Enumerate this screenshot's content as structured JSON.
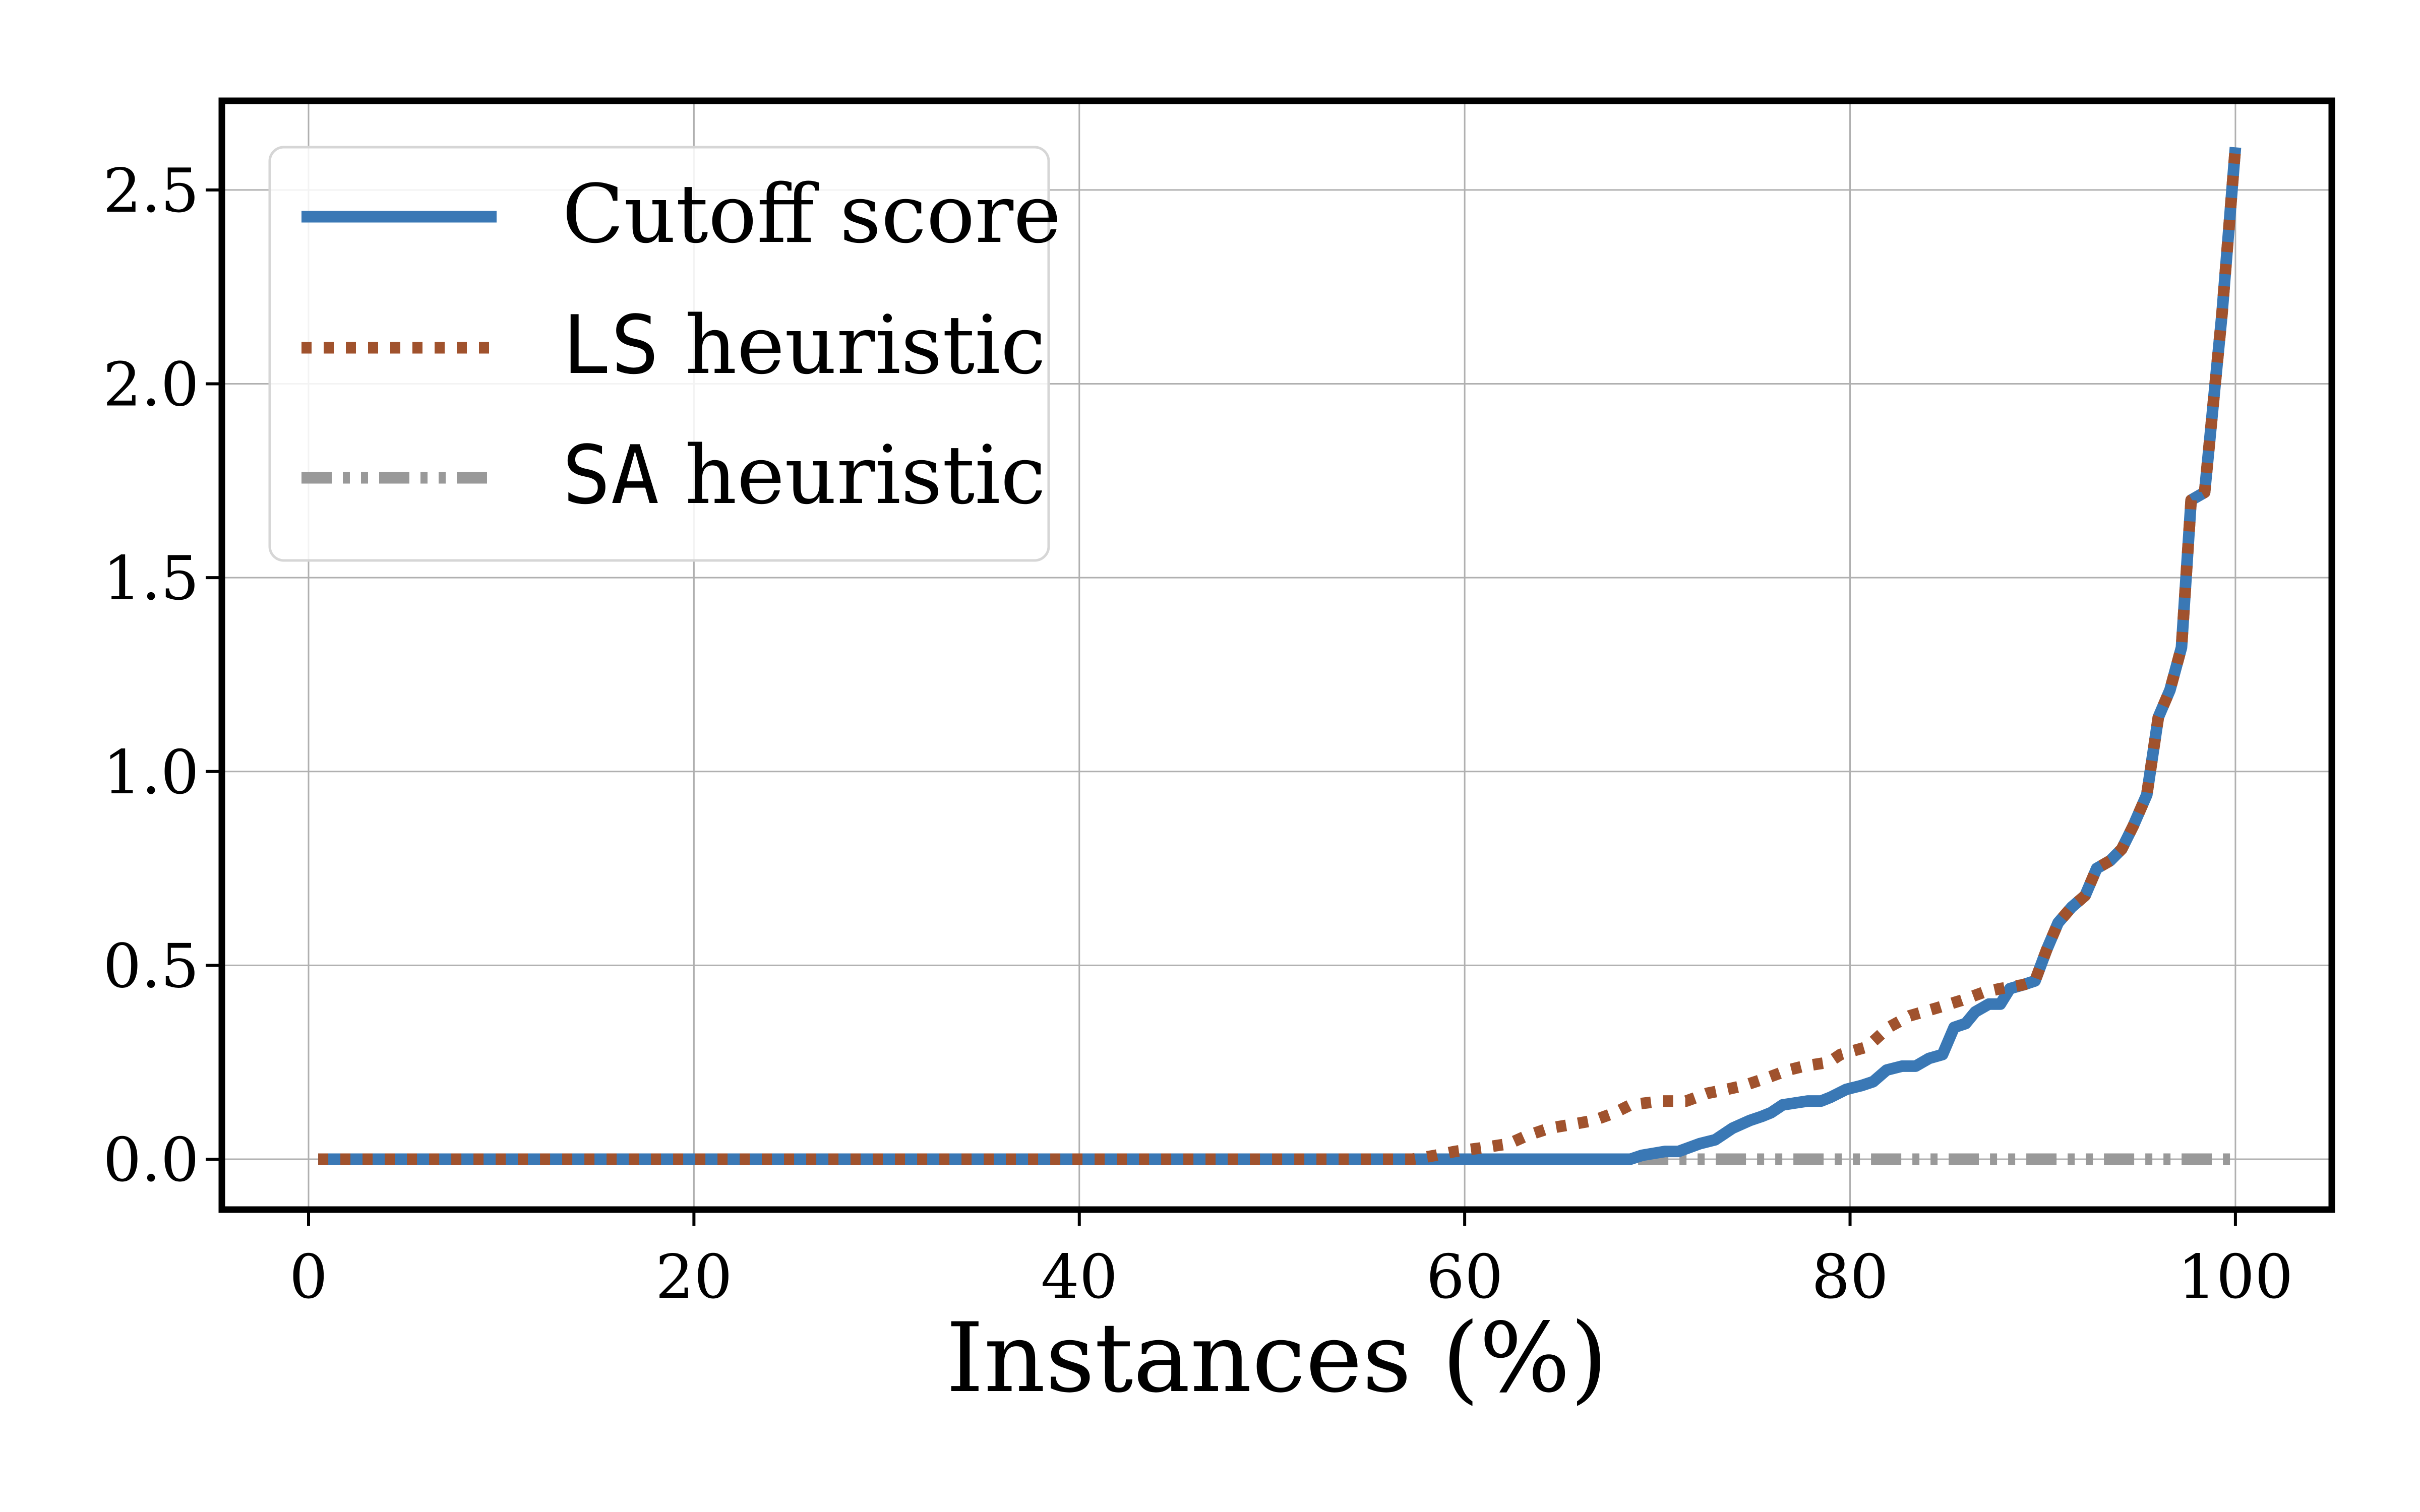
{
  "chart_data": {
    "type": "line",
    "xlabel": "Instances (%)",
    "ylabel": "",
    "xlim": [
      -4.5,
      105
    ],
    "ylim": [
      -0.13,
      2.73
    ],
    "xticks": [
      0,
      20,
      40,
      60,
      80,
      100
    ],
    "xtick_labels": [
      "0",
      "20",
      "40",
      "60",
      "80",
      "100"
    ],
    "yticks": [
      0.0,
      0.5,
      1.0,
      1.5,
      2.0,
      2.5
    ],
    "ytick_labels": [
      "0.0",
      "0.5",
      "1.0",
      "1.5",
      "2.0",
      "2.5"
    ],
    "grid": true,
    "legend_position": "top-left",
    "series": [
      {
        "name": "Cutoff score",
        "style": "solid",
        "color": "#3a78b5",
        "points": [
          [
            0.5,
            0
          ],
          [
            10,
            0
          ],
          [
            20,
            0
          ],
          [
            30,
            0
          ],
          [
            40,
            0
          ],
          [
            50,
            0
          ],
          [
            60,
            0
          ],
          [
            68.6,
            0
          ],
          [
            69.2,
            0.01
          ],
          [
            70.4,
            0.02
          ],
          [
            71.1,
            0.02
          ],
          [
            72.2,
            0.04
          ],
          [
            73.0,
            0.05
          ],
          [
            73.9,
            0.08
          ],
          [
            74.8,
            0.1
          ],
          [
            75.4,
            0.11
          ],
          [
            75.9,
            0.12
          ],
          [
            76.5,
            0.14
          ],
          [
            77.8,
            0.15
          ],
          [
            78.5,
            0.15
          ],
          [
            79.0,
            0.16
          ],
          [
            79.8,
            0.18
          ],
          [
            80.6,
            0.19
          ],
          [
            81.2,
            0.2
          ],
          [
            81.9,
            0.23
          ],
          [
            82.7,
            0.24
          ],
          [
            83.4,
            0.24
          ],
          [
            84.1,
            0.26
          ],
          [
            84.8,
            0.27
          ],
          [
            85.4,
            0.34
          ],
          [
            86.0,
            0.35
          ],
          [
            86.5,
            0.38
          ],
          [
            87.2,
            0.4
          ],
          [
            87.8,
            0.4
          ],
          [
            88.3,
            0.44
          ],
          [
            89.0,
            0.45
          ],
          [
            89.6,
            0.46
          ],
          [
            90.2,
            0.54
          ],
          [
            90.8,
            0.61
          ],
          [
            91.5,
            0.65
          ],
          [
            92.2,
            0.68
          ],
          [
            92.8,
            0.75
          ],
          [
            93.5,
            0.77
          ],
          [
            94.1,
            0.8
          ],
          [
            94.7,
            0.86
          ],
          [
            95.4,
            0.94
          ],
          [
            96.0,
            1.14
          ],
          [
            96.6,
            1.21
          ],
          [
            97.2,
            1.32
          ],
          [
            97.7,
            1.7
          ],
          [
            98.4,
            1.72
          ],
          [
            99.3,
            2.18
          ],
          [
            100,
            2.61
          ]
        ]
      },
      {
        "name": "LS heuristic",
        "style": "dotted",
        "color": "#a0522d",
        "points": [
          [
            0.5,
            0
          ],
          [
            10,
            0
          ],
          [
            20,
            0
          ],
          [
            30,
            0
          ],
          [
            40,
            0
          ],
          [
            50,
            0
          ],
          [
            57.3,
            0
          ],
          [
            58.5,
            0.01
          ],
          [
            59.5,
            0.02
          ],
          [
            61.0,
            0.03
          ],
          [
            62.3,
            0.04
          ],
          [
            63.2,
            0.06
          ],
          [
            64.4,
            0.08
          ],
          [
            65.6,
            0.09
          ],
          [
            66.7,
            0.1
          ],
          [
            67.8,
            0.12
          ],
          [
            68.6,
            0.14
          ],
          [
            70.2,
            0.15
          ],
          [
            71.5,
            0.15
          ],
          [
            72.6,
            0.17
          ],
          [
            73.6,
            0.18
          ],
          [
            74.5,
            0.19
          ],
          [
            75.7,
            0.21
          ],
          [
            76.8,
            0.23
          ],
          [
            77.6,
            0.24
          ],
          [
            78.9,
            0.25
          ],
          [
            79.5,
            0.27
          ],
          [
            80.9,
            0.29
          ],
          [
            82.0,
            0.34
          ],
          [
            83.1,
            0.37
          ],
          [
            84.5,
            0.39
          ],
          [
            85.8,
            0.41
          ],
          [
            86.9,
            0.43
          ],
          [
            87.8,
            0.44
          ],
          [
            89.0,
            0.45
          ],
          [
            89.6,
            0.46
          ],
          [
            90.2,
            0.54
          ],
          [
            90.8,
            0.61
          ],
          [
            91.5,
            0.65
          ],
          [
            92.2,
            0.68
          ],
          [
            92.8,
            0.75
          ],
          [
            93.5,
            0.77
          ],
          [
            94.1,
            0.8
          ],
          [
            94.7,
            0.86
          ],
          [
            95.4,
            0.94
          ],
          [
            96.0,
            1.14
          ],
          [
            96.6,
            1.21
          ],
          [
            97.2,
            1.32
          ],
          [
            97.7,
            1.7
          ],
          [
            98.4,
            1.72
          ],
          [
            99.3,
            2.18
          ],
          [
            100,
            2.61
          ]
        ]
      },
      {
        "name": "SA heuristic",
        "style": "dashdot",
        "color": "#999999",
        "points": [
          [
            0.5,
            0
          ],
          [
            20,
            0
          ],
          [
            40,
            0
          ],
          [
            60,
            0
          ],
          [
            80,
            0
          ],
          [
            100,
            0
          ]
        ]
      }
    ]
  },
  "legend": {
    "items": [
      {
        "prefix": "",
        "text": "Cutoff score"
      },
      {
        "prefix": "LS",
        "text": " heuristic"
      },
      {
        "prefix": "SA",
        "text": " heuristic"
      }
    ]
  }
}
